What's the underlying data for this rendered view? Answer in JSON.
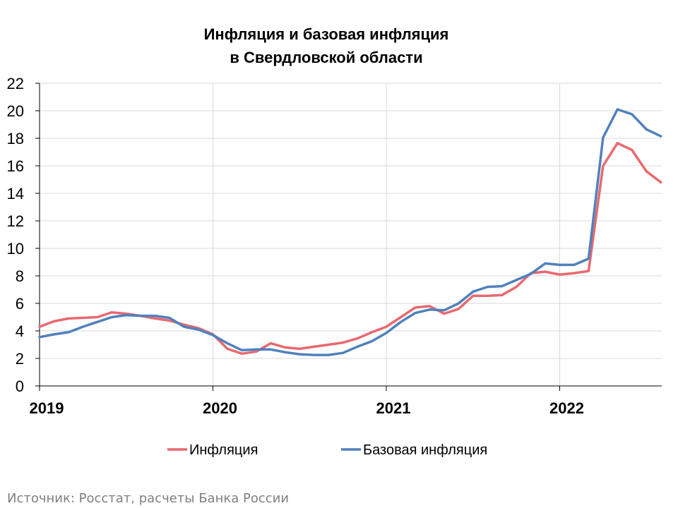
{
  "chart_data": {
    "type": "line",
    "title": [
      "Инфляция и базовая инфляция",
      "в  Свердловской области"
    ],
    "xlabel": "",
    "ylabel": "",
    "ylim": [
      0,
      22
    ],
    "yticks": [
      "0",
      "2",
      "4",
      "6",
      "8",
      "10",
      "12",
      "14",
      "16",
      "18",
      "20",
      "22"
    ],
    "xticks": [
      "2019",
      "2020",
      "2021",
      "2022"
    ],
    "x_start": "2019-01",
    "x_end": "2022-08",
    "grid": true,
    "legend_position": "bottom",
    "series": [
      {
        "name": "Инфляция",
        "color": "#e8696f",
        "values": [
          4.3,
          4.7,
          4.9,
          4.95,
          5.0,
          5.35,
          5.25,
          5.1,
          4.9,
          4.75,
          4.45,
          4.2,
          3.75,
          2.7,
          2.35,
          2.5,
          3.1,
          2.8,
          2.7,
          2.85,
          3.0,
          3.15,
          3.45,
          3.9,
          4.3,
          5.0,
          5.7,
          5.8,
          5.25,
          5.6,
          6.55,
          6.55,
          6.6,
          7.2,
          8.2,
          8.3,
          8.1,
          8.2,
          8.35,
          16.0,
          17.65,
          17.15,
          15.6,
          14.8
        ]
      },
      {
        "name": "Базовая инфляция",
        "color": "#4f81bd",
        "values": [
          3.55,
          3.75,
          3.9,
          4.3,
          4.65,
          5.0,
          5.15,
          5.1,
          5.1,
          4.95,
          4.3,
          4.1,
          3.7,
          3.1,
          2.6,
          2.65,
          2.65,
          2.45,
          2.3,
          2.25,
          2.25,
          2.4,
          2.85,
          3.25,
          3.85,
          4.65,
          5.3,
          5.55,
          5.5,
          6.0,
          6.85,
          7.2,
          7.25,
          7.7,
          8.15,
          8.9,
          8.8,
          8.8,
          9.25,
          18.05,
          20.1,
          19.75,
          18.65,
          18.15
        ]
      }
    ]
  },
  "source": "Источник: Росстат, расчеты Банка России"
}
